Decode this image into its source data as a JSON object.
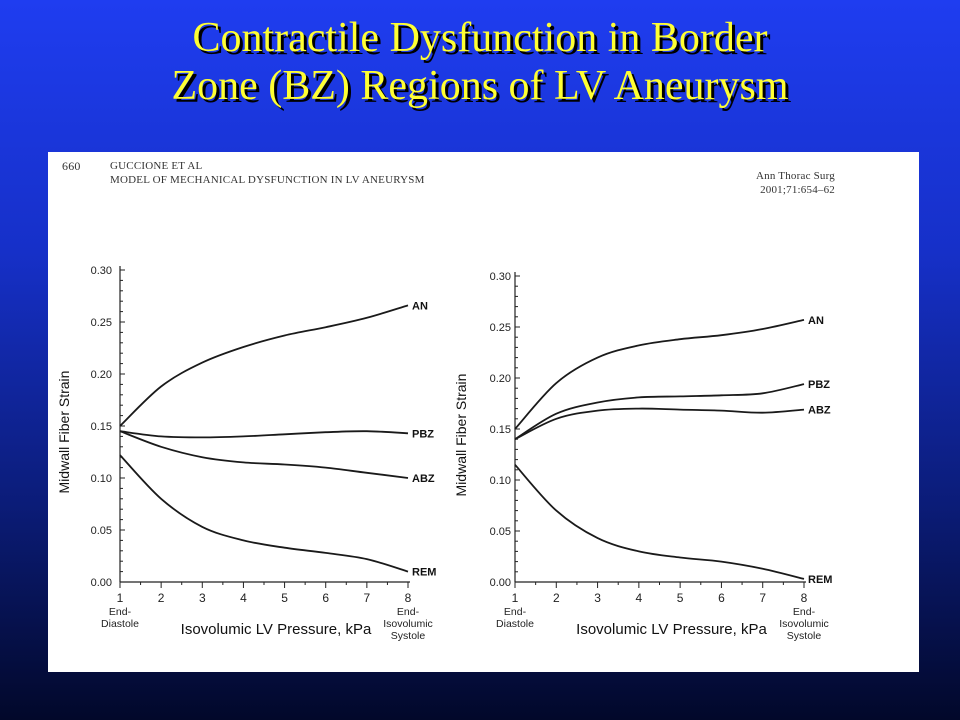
{
  "slide": {
    "title_line1": "Contractile Dysfunction in Border",
    "title_line2": "Zone (BZ) Regions of LV Aneurysm"
  },
  "journal_header": {
    "page_number": "660",
    "authors": "GUCCIONE ET AL",
    "subtitle": "MODEL OF MECHANICAL DYSFUNCTION IN LV ANEURYSM",
    "journal": "Ann Thorac Surg",
    "citation": "2001;71:654–62"
  },
  "chart_data": [
    {
      "type": "line",
      "xlabel": "Isovolumic LV Pressure, kPa",
      "ylabel": "Midwall Fiber Strain",
      "xlim": [
        1,
        8
      ],
      "ylim": [
        0,
        0.3
      ],
      "xticks": [
        "1",
        "2",
        "3",
        "4",
        "5",
        "6",
        "7",
        "8"
      ],
      "yticks": [
        "0.00",
        "0.05",
        "0.10",
        "0.15",
        "0.20",
        "0.25",
        "0.30"
      ],
      "x_start_label": [
        "End-",
        "Diastole"
      ],
      "x_end_label": [
        "End-",
        "Isovolumic",
        "Systole"
      ],
      "x": [
        1,
        2,
        3,
        4,
        5,
        6,
        7,
        8
      ],
      "series": [
        {
          "name": "AN",
          "values": [
            0.15,
            0.188,
            0.211,
            0.226,
            0.237,
            0.245,
            0.254,
            0.266
          ]
        },
        {
          "name": "PBZ",
          "values": [
            0.145,
            0.14,
            0.139,
            0.14,
            0.142,
            0.144,
            0.145,
            0.143
          ]
        },
        {
          "name": "ABZ",
          "values": [
            0.145,
            0.13,
            0.12,
            0.115,
            0.113,
            0.11,
            0.105,
            0.1
          ]
        },
        {
          "name": "REM",
          "values": [
            0.122,
            0.08,
            0.053,
            0.04,
            0.033,
            0.028,
            0.022,
            0.01
          ]
        }
      ]
    },
    {
      "type": "line",
      "xlabel": "Isovolumic LV Pressure, kPa",
      "ylabel": "Midwall Fiber Strain",
      "xlim": [
        1,
        8
      ],
      "ylim": [
        0,
        0.3
      ],
      "xticks": [
        "1",
        "2",
        "3",
        "4",
        "5",
        "6",
        "7",
        "8"
      ],
      "yticks": [
        "0.00",
        "0.05",
        "0.10",
        "0.15",
        "0.20",
        "0.25",
        "0.30"
      ],
      "x_start_label": [
        "End-",
        "Diastole"
      ],
      "x_end_label": [
        "End-",
        "Isovolumic",
        "Systole"
      ],
      "x": [
        1,
        2,
        3,
        4,
        5,
        6,
        7,
        8
      ],
      "series": [
        {
          "name": "AN",
          "values": [
            0.15,
            0.195,
            0.22,
            0.232,
            0.238,
            0.242,
            0.248,
            0.257
          ]
        },
        {
          "name": "PBZ",
          "values": [
            0.14,
            0.165,
            0.176,
            0.181,
            0.182,
            0.183,
            0.185,
            0.194
          ]
        },
        {
          "name": "ABZ",
          "values": [
            0.14,
            0.16,
            0.168,
            0.17,
            0.169,
            0.168,
            0.166,
            0.169
          ]
        },
        {
          "name": "REM",
          "values": [
            0.115,
            0.07,
            0.043,
            0.03,
            0.024,
            0.02,
            0.013,
            0.003
          ]
        }
      ]
    }
  ]
}
